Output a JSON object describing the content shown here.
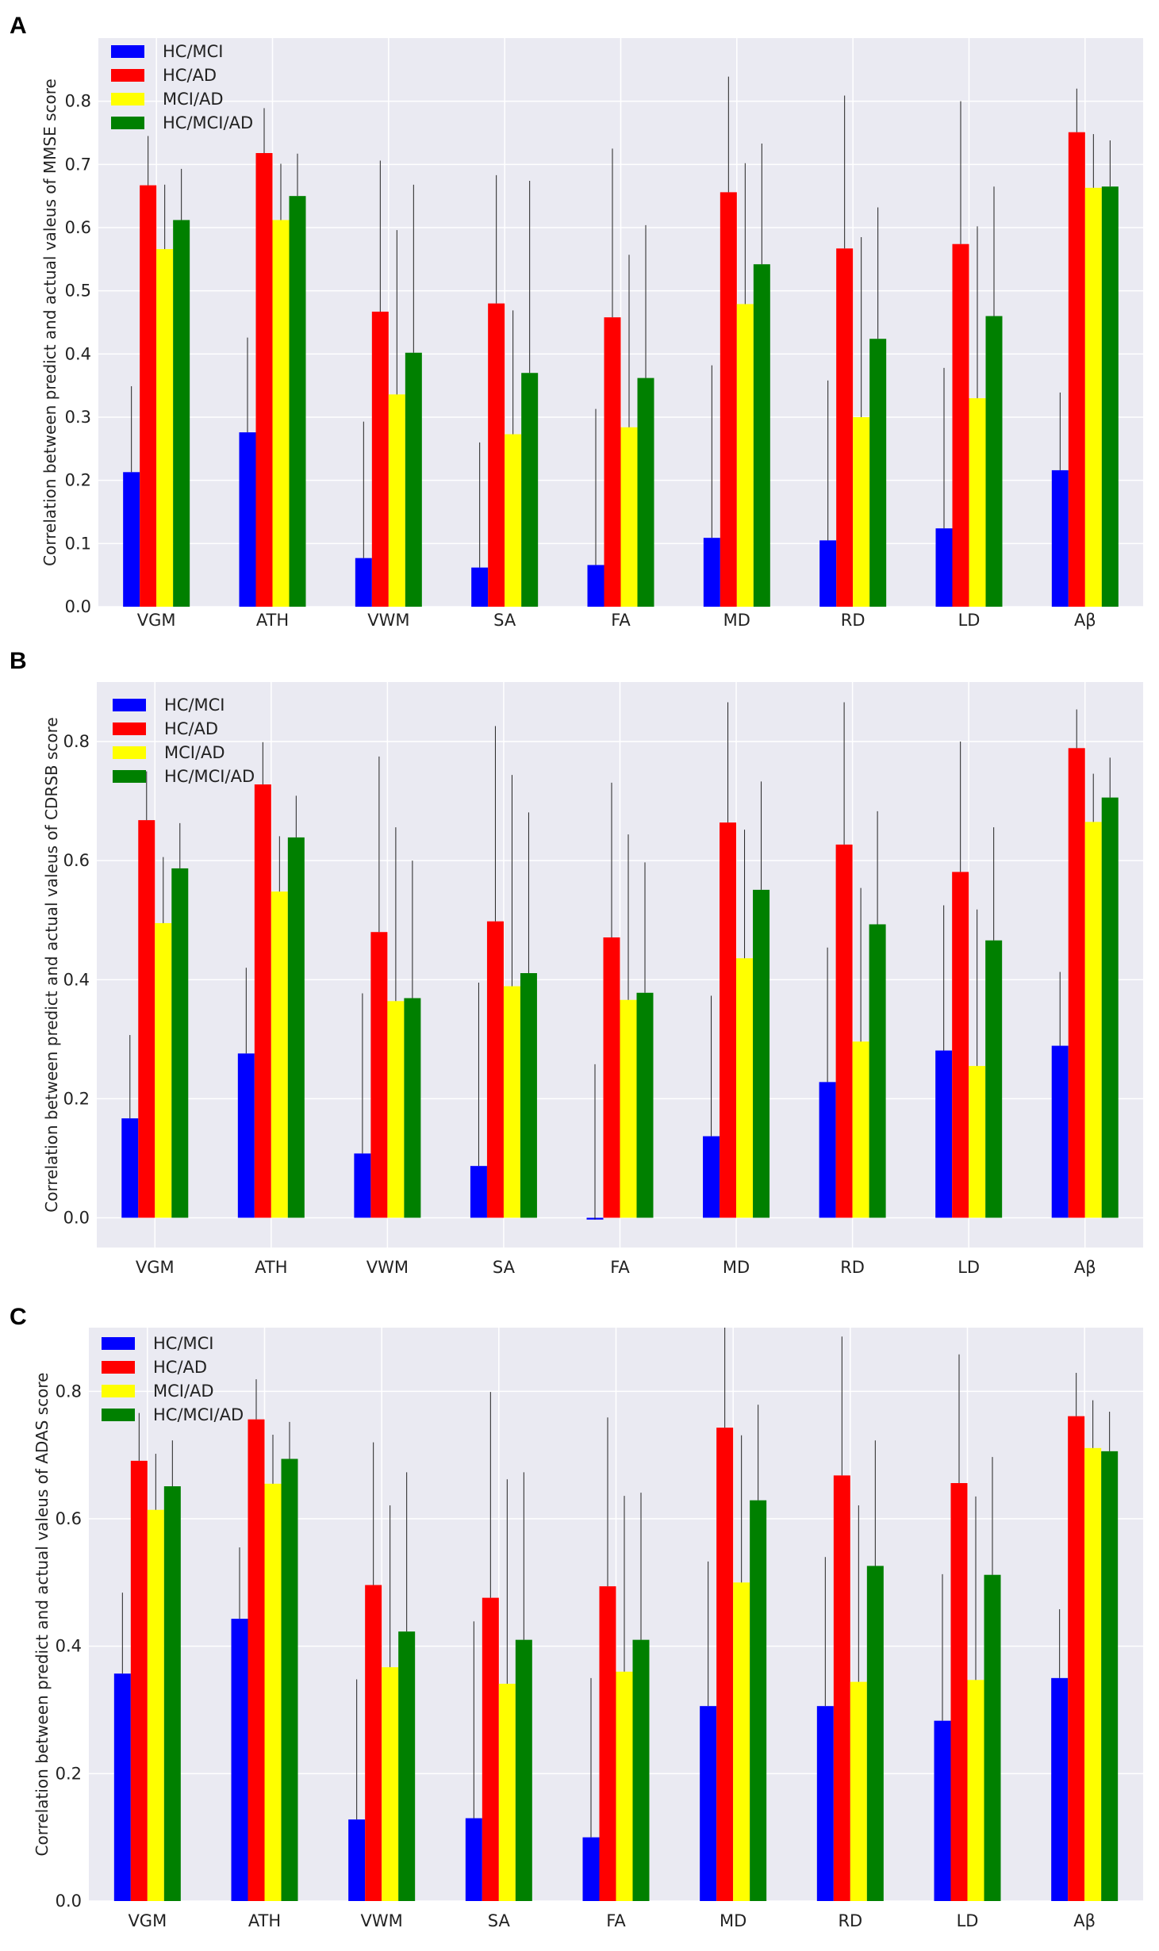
{
  "colors": {
    "background": "#eaeaf2",
    "grid": "#ffffff",
    "error_bar": "#222222",
    "series": [
      "#0000ff",
      "#ff0000",
      "#ffff00",
      "#008000"
    ]
  },
  "chart_data": [
    {
      "type": "bar",
      "panel": "A",
      "title": "",
      "xlabel": "",
      "ylabel": "Correlation between predict and actual valeus of MMSE score",
      "categories": [
        "VGM",
        "ATH",
        "VWM",
        "SA",
        "FA",
        "MD",
        "RD",
        "LD",
        "Aβ"
      ],
      "ylim": [
        0,
        0.9
      ],
      "yticks": [
        0.0,
        0.1,
        0.2,
        0.3,
        0.4,
        0.5,
        0.6,
        0.7,
        0.8
      ],
      "ytick_labels": [
        "0.0",
        "0.1",
        "0.2",
        "0.3",
        "0.4",
        "0.5",
        "0.6",
        "0.7",
        "0.8"
      ],
      "legend_position": "top-left",
      "grid": true,
      "series": [
        {
          "name": "HC/MCI",
          "values": [
            0.213,
            0.276,
            0.077,
            0.062,
            0.066,
            0.109,
            0.105,
            0.124,
            0.216
          ],
          "errors": [
            0.136,
            0.15,
            0.216,
            0.198,
            0.247,
            0.273,
            0.253,
            0.254,
            0.123
          ]
        },
        {
          "name": "HC/AD",
          "values": [
            0.667,
            0.718,
            0.467,
            0.48,
            0.458,
            0.656,
            0.567,
            0.574,
            0.751
          ],
          "errors": [
            0.078,
            0.071,
            0.239,
            0.203,
            0.267,
            0.183,
            0.242,
            0.226,
            0.069
          ]
        },
        {
          "name": "MCI/AD",
          "values": [
            0.566,
            0.612,
            0.336,
            0.273,
            0.284,
            0.479,
            0.3,
            0.33,
            0.663
          ],
          "errors": [
            0.102,
            0.089,
            0.26,
            0.196,
            0.273,
            0.223,
            0.285,
            0.272,
            0.085
          ]
        },
        {
          "name": "HC/MCI/AD",
          "values": [
            0.612,
            0.65,
            0.402,
            0.37,
            0.362,
            0.542,
            0.424,
            0.46,
            0.665
          ],
          "errors": [
            0.081,
            0.067,
            0.266,
            0.304,
            0.242,
            0.191,
            0.208,
            0.205,
            0.073
          ]
        }
      ]
    },
    {
      "type": "bar",
      "panel": "B",
      "title": "",
      "xlabel": "",
      "ylabel": "Correlation between predict and actual valeus  of CDRSB score",
      "categories": [
        "VGM",
        "ATH",
        "VWM",
        "SA",
        "FA",
        "MD",
        "RD",
        "LD",
        "Aβ"
      ],
      "ylim": [
        -0.05,
        0.9
      ],
      "yticks": [
        0.0,
        0.2,
        0.4,
        0.6,
        0.8
      ],
      "ytick_labels": [
        "0.0",
        "0.2",
        "0.4",
        "0.6",
        "0.8"
      ],
      "legend_position": "top-left",
      "grid": true,
      "series": [
        {
          "name": "HC/MCI",
          "values": [
            0.167,
            0.276,
            0.108,
            0.087,
            -0.003,
            0.137,
            0.228,
            0.281,
            0.289
          ],
          "errors": [
            0.14,
            0.144,
            0.269,
            0.308,
            0.261,
            0.236,
            0.226,
            0.244,
            0.124
          ]
        },
        {
          "name": "HC/AD",
          "values": [
            0.668,
            0.728,
            0.48,
            0.498,
            0.471,
            0.664,
            0.627,
            0.581,
            0.789
          ],
          "errors": [
            0.082,
            0.071,
            0.295,
            0.328,
            0.26,
            0.202,
            0.239,
            0.219,
            0.065
          ]
        },
        {
          "name": "MCI/AD",
          "values": [
            0.495,
            0.548,
            0.364,
            0.389,
            0.366,
            0.436,
            0.296,
            0.255,
            0.665
          ],
          "errors": [
            0.111,
            0.093,
            0.292,
            0.355,
            0.278,
            0.216,
            0.258,
            0.263,
            0.081
          ]
        },
        {
          "name": "HC/MCI/AD",
          "values": [
            0.587,
            0.639,
            0.369,
            0.411,
            0.378,
            0.551,
            0.493,
            0.466,
            0.706
          ],
          "errors": [
            0.076,
            0.07,
            0.231,
            0.27,
            0.219,
            0.182,
            0.19,
            0.19,
            0.067
          ]
        }
      ]
    },
    {
      "type": "bar",
      "panel": "C",
      "title": "",
      "xlabel": "",
      "ylabel": "Correlation between predict and actual valeus of ADAS score",
      "categories": [
        "VGM",
        "ATH",
        "VWM",
        "SA",
        "FA",
        "MD",
        "RD",
        "LD",
        "Aβ"
      ],
      "ylim": [
        0,
        0.9
      ],
      "yticks": [
        0.0,
        0.2,
        0.4,
        0.6,
        0.8
      ],
      "ytick_labels": [
        "0.0",
        "0.2",
        "0.4",
        "0.6",
        "0.8"
      ],
      "legend_position": "top-left",
      "grid": true,
      "series": [
        {
          "name": "HC/MCI",
          "values": [
            0.357,
            0.443,
            0.128,
            0.13,
            0.1,
            0.306,
            0.306,
            0.283,
            0.35
          ],
          "errors": [
            0.127,
            0.112,
            0.22,
            0.309,
            0.25,
            0.227,
            0.234,
            0.23,
            0.108
          ]
        },
        {
          "name": "HC/AD",
          "values": [
            0.691,
            0.756,
            0.496,
            0.476,
            0.494,
            0.743,
            0.668,
            0.656,
            0.761
          ],
          "errors": [
            0.075,
            0.063,
            0.224,
            0.323,
            0.265,
            0.157,
            0.218,
            0.202,
            0.068
          ]
        },
        {
          "name": "MCI/AD",
          "values": [
            0.614,
            0.655,
            0.367,
            0.341,
            0.36,
            0.5,
            0.344,
            0.347,
            0.711
          ],
          "errors": [
            0.088,
            0.077,
            0.254,
            0.321,
            0.276,
            0.231,
            0.277,
            0.288,
            0.075
          ]
        },
        {
          "name": "HC/MCI/AD",
          "values": [
            0.651,
            0.694,
            0.423,
            0.41,
            0.41,
            0.629,
            0.526,
            0.512,
            0.706
          ],
          "errors": [
            0.072,
            0.058,
            0.25,
            0.263,
            0.231,
            0.15,
            0.197,
            0.185,
            0.062
          ]
        }
      ]
    }
  ]
}
